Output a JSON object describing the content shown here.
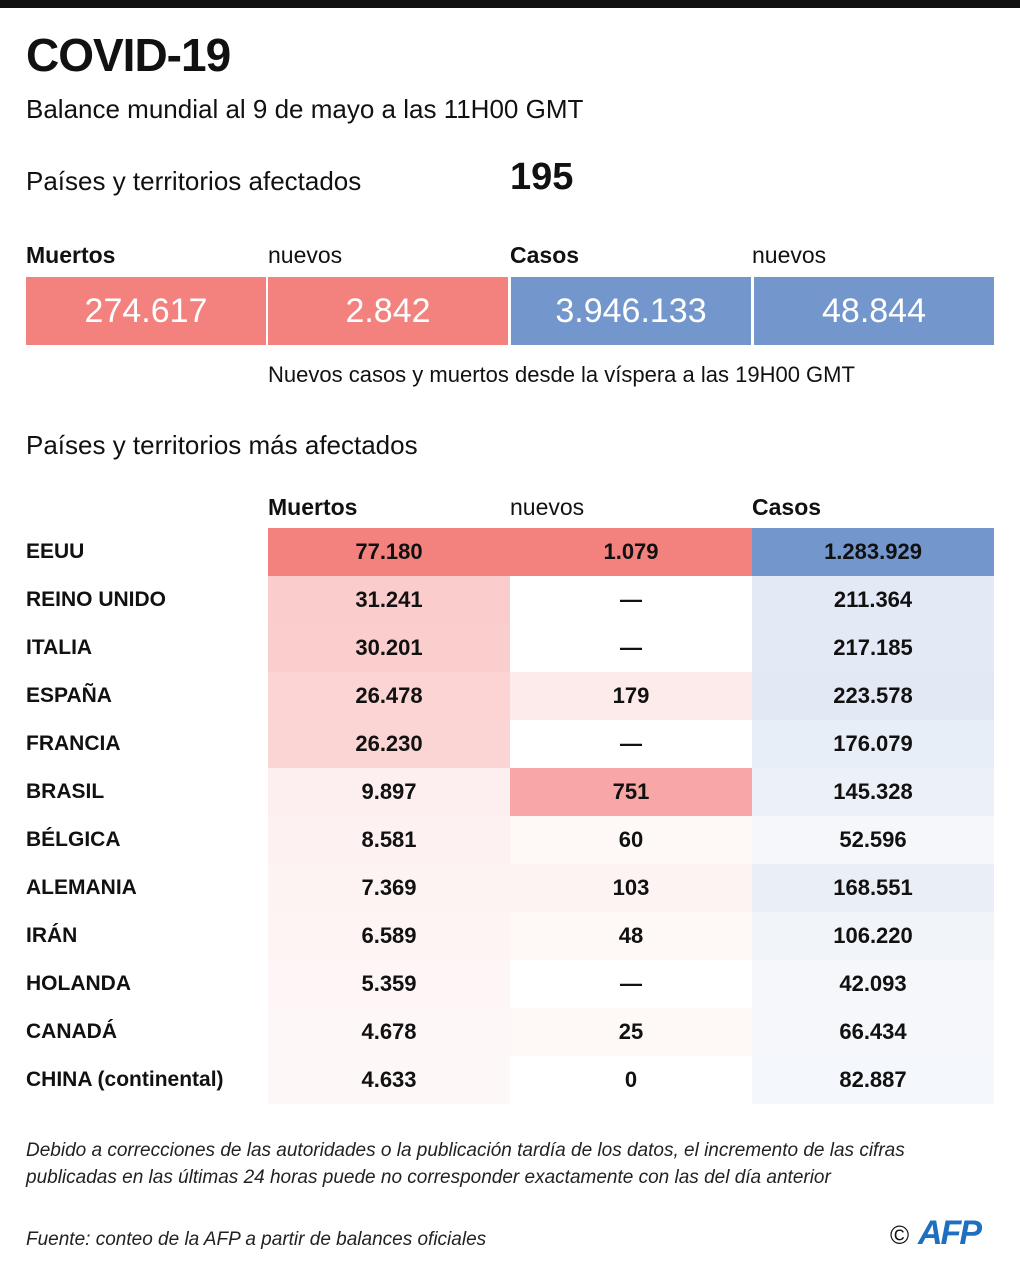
{
  "header": {
    "title": "COVID-19",
    "subtitle": "Balance mundial al 9 de mayo a las 11H00 GMT"
  },
  "affected": {
    "label": "Países y territorios afectados",
    "value": "195"
  },
  "summary": {
    "deaths_label": "Muertos",
    "deaths_new_label": "nuevos",
    "cases_label": "Casos",
    "cases_new_label": "nuevos",
    "deaths": "274.617",
    "deaths_new": "2.842",
    "cases": "3.946.133",
    "cases_new": "48.844",
    "note": "Nuevos casos y muertos desde la víspera a las 19H00 GMT"
  },
  "colors": {
    "deaths": "#f3827f",
    "cases": "#7396cd"
  },
  "table": {
    "title": "Países y territorios más afectados",
    "headers": [
      "Muertos",
      "nuevos",
      "Casos"
    ],
    "rows": [
      {
        "country": "EEUU",
        "deaths": "77.180",
        "new": "1.079",
        "cases": "1.283.929"
      },
      {
        "country": "REINO UNIDO",
        "deaths": "31.241",
        "new": "—",
        "cases": "211.364"
      },
      {
        "country": "ITALIA",
        "deaths": "30.201",
        "new": "—",
        "cases": "217.185"
      },
      {
        "country": "ESPAÑA",
        "deaths": "26.478",
        "new": "179",
        "cases": "223.578"
      },
      {
        "country": "FRANCIA",
        "deaths": "26.230",
        "new": "—",
        "cases": "176.079"
      },
      {
        "country": "BRASIL",
        "deaths": "9.897",
        "new": "751",
        "cases": "145.328"
      },
      {
        "country": "BÉLGICA",
        "deaths": "8.581",
        "new": "60",
        "cases": "52.596"
      },
      {
        "country": "ALEMANIA",
        "deaths": "7.369",
        "new": "103",
        "cases": "168.551"
      },
      {
        "country": "IRÁN",
        "deaths": "6.589",
        "new": "48",
        "cases": "106.220"
      },
      {
        "country": "HOLANDA",
        "deaths": "5.359",
        "new": "—",
        "cases": "42.093"
      },
      {
        "country": "CANADÁ",
        "deaths": "4.678",
        "new": "25",
        "cases": "66.434"
      },
      {
        "country": "CHINA (continental)",
        "deaths": "4.633",
        "new": "0",
        "cases": "82.887"
      }
    ]
  },
  "footer": {
    "disclaimer_1": "Debido a correcciones de las autoridades o la publicación tardía de los datos, el incremento de las cifras",
    "disclaimer_2": "publicadas en las últimas 24 horas puede no corresponder exactamente con las del día anterior",
    "source": "Fuente: conteo de la AFP a partir de balances oficiales",
    "copyright": "©",
    "logo": "AFP"
  }
}
